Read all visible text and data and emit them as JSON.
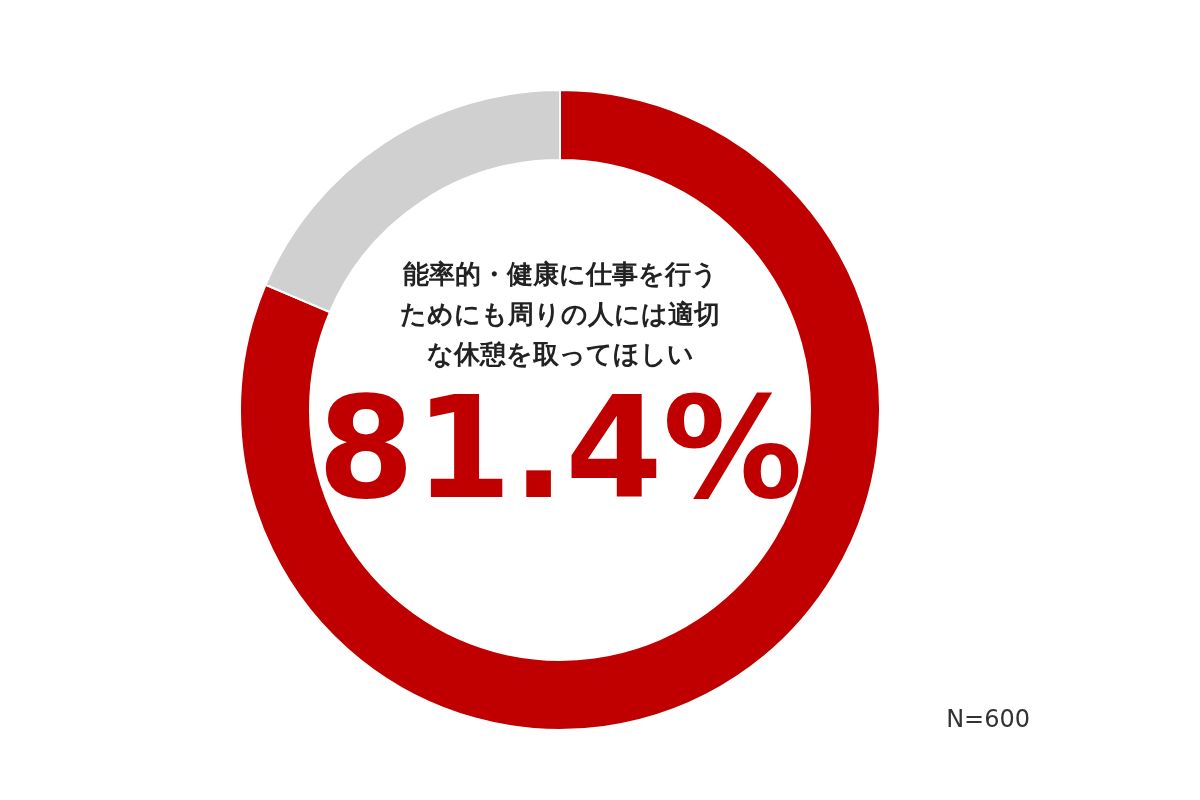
{
  "chart_data": {
    "type": "donut",
    "categories": [
      "能率的・健康に仕事を行うためにも周りの人には適切な休憩を取ってほしい",
      null
    ],
    "values": [
      81.4,
      18.6
    ],
    "colors": [
      "#c00000",
      "#d0d0d0"
    ],
    "value_labels": [
      "81.4%",
      null
    ],
    "annotations": [
      "N=600"
    ]
  }
}
